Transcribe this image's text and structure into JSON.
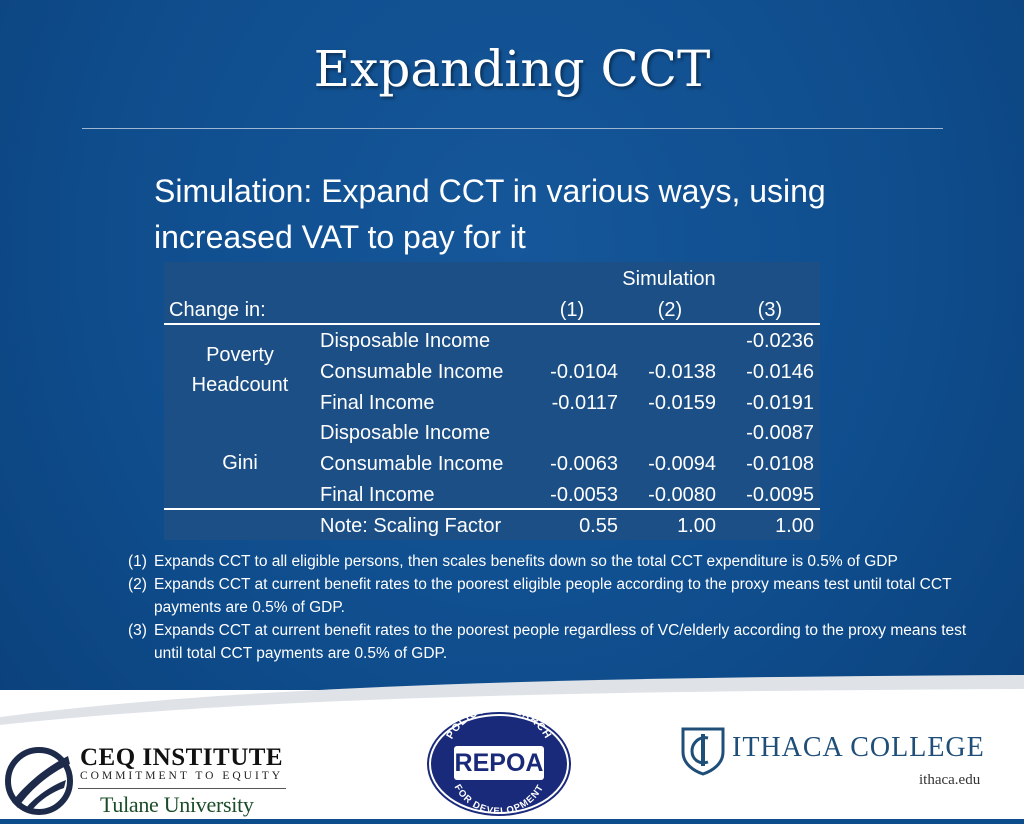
{
  "slide": {
    "title": "Expanding CCT",
    "subtitle_line1": "Simulation:  Expand CCT in various ways, using",
    "subtitle_line2": "increased VAT to pay for it"
  },
  "table": {
    "group_header": "Simulation",
    "row_header": "Change in:",
    "columns": [
      "(1)",
      "(2)",
      "(3)"
    ],
    "groups": [
      {
        "label_line1": "Poverty",
        "label_line2": "Headcount",
        "rows": [
          {
            "label": "Disposable Income",
            "values": [
              "",
              "",
              "-0.0236"
            ]
          },
          {
            "label": "Consumable Income",
            "values": [
              "-0.0104",
              "-0.0138",
              "-0.0146"
            ]
          },
          {
            "label": "Final Income",
            "values": [
              "-0.0117",
              "-0.0159",
              "-0.0191"
            ]
          }
        ]
      },
      {
        "label_line1": "Gini",
        "label_line2": "",
        "rows": [
          {
            "label": "Disposable Income",
            "values": [
              "",
              "",
              "-0.0087"
            ]
          },
          {
            "label": "Consumable Income",
            "values": [
              "-0.0063",
              "-0.0094",
              "-0.0108"
            ]
          },
          {
            "label": "Final Income",
            "values": [
              "-0.0053",
              "-0.0080",
              "-0.0095"
            ]
          }
        ]
      }
    ],
    "note_row": {
      "label": "Note: Scaling Factor",
      "values": [
        "0.55",
        "1.00",
        "1.00"
      ]
    }
  },
  "notes": [
    {
      "num": "(1)",
      "text": "Expands CCT to all eligible persons, then scales benefits down so the total CCT expenditure is 0.5% of GDP"
    },
    {
      "num": "(2)",
      "text": "Expands CCT at current benefit rates to the poorest eligible people according to the proxy means test until total CCT  payments are 0.5% of GDP."
    },
    {
      "num": "(3)",
      "text": "Expands CCT at current benefit rates to the poorest people regardless of VC/elderly according to the proxy means test until total CCT  payments are 0.5% of GDP."
    }
  ],
  "logos": {
    "ceq_name": "CEQ INSTITUTE",
    "ceq_tagline": "COMMITMENT TO EQUITY",
    "ceq_university": "Tulane University",
    "repoa_name": "REPOA",
    "repoa_top": "POLICY RESEARCH",
    "repoa_bottom": "FOR DEVELOPMENT",
    "ithaca_name": "ITHACA COLLEGE",
    "ithaca_url": "ithaca.edu"
  },
  "colors": {
    "background": "#0e4d8c",
    "table_panel": "#1b4f86",
    "ithaca_blue": "#1f4e79",
    "repoa_navy": "#1a2a7a"
  }
}
